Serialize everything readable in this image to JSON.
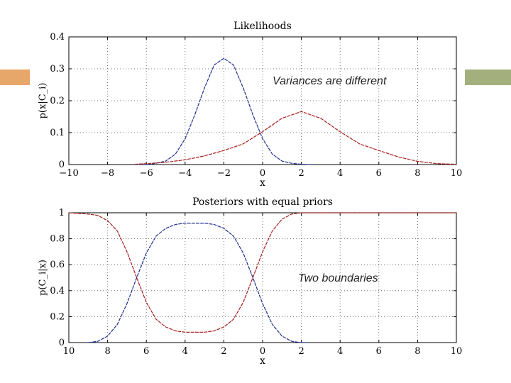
{
  "slide": {
    "accent_color": "#e7a66a",
    "accent_right_color": "#a3b07d"
  },
  "annotations": {
    "top": "Variances are different",
    "bottom": "Two boundaries"
  },
  "chart_data": [
    {
      "type": "line",
      "title": "Likelihoods",
      "xlabel": "x",
      "ylabel": "p(x|C_i)",
      "xlim": [
        -10,
        10
      ],
      "ylim": [
        0,
        0.4
      ],
      "x_ticks": [
        -10,
        -8,
        -6,
        -4,
        -2,
        0,
        2,
        4,
        6,
        8,
        10
      ],
      "y_ticks": [
        0,
        0.1,
        0.2,
        0.3,
        0.4
      ],
      "x_tick_labels": [
        "−10",
        "−8",
        "−6",
        "−4",
        "−2",
        "0",
        "2",
        "4",
        "6",
        "8",
        "10"
      ],
      "y_tick_labels": [
        "0",
        "0.1",
        "0.2",
        "0.3",
        "0.4"
      ],
      "grid": true,
      "series": [
        {
          "color": "#1f2f8f",
          "x": [
            -6.4,
            -6,
            -5.5,
            -5,
            -4.5,
            -4,
            -3.5,
            -3,
            -2.5,
            -2,
            -1.5,
            -1,
            -0.5,
            0,
            0.5,
            1,
            1.5,
            2,
            2.5
          ],
          "y": [
            0.0,
            0.0,
            0.004,
            0.011,
            0.033,
            0.081,
            0.156,
            0.24,
            0.312,
            0.333,
            0.312,
            0.24,
            0.156,
            0.081,
            0.033,
            0.011,
            0.004,
            0.001,
            0.0
          ]
        },
        {
          "color": "#a52020",
          "x": [
            -6.6,
            -6,
            -5,
            -4,
            -3,
            -2,
            -1,
            0,
            1,
            2,
            3,
            4,
            5,
            6,
            7,
            8,
            9,
            10
          ],
          "y": [
            0.001,
            0.003,
            0.007,
            0.015,
            0.027,
            0.044,
            0.065,
            0.103,
            0.145,
            0.166,
            0.145,
            0.103,
            0.065,
            0.044,
            0.024,
            0.01,
            0.003,
            0.001
          ]
        }
      ]
    },
    {
      "type": "line",
      "title": "Posteriors with equal priors",
      "xlabel": "x",
      "ylabel": "p(C_i|x)",
      "xlim": [
        -10,
        10
      ],
      "ylim": [
        0,
        1
      ],
      "x_ticks": [
        -10,
        -8,
        -6,
        -4,
        -2,
        0,
        2,
        4,
        6,
        8,
        10
      ],
      "y_ticks": [
        0,
        0.2,
        0.4,
        0.6,
        0.8,
        1
      ],
      "x_tick_labels": [
        "10",
        "8",
        "6",
        "4",
        "2",
        "0",
        "2",
        "4",
        "6",
        "8",
        "10"
      ],
      "y_tick_labels": [
        "0",
        "0.2",
        "0.4",
        "0.6",
        "0.8",
        "1"
      ],
      "grid": true,
      "series": [
        {
          "color": "#1f2f8f",
          "x": [
            -9,
            -8.5,
            -8,
            -7.5,
            -7,
            -6.5,
            -6,
            -5.5,
            -5,
            -4.5,
            -4,
            -3.5,
            -3,
            -2.5,
            -2,
            -1.5,
            -1,
            -0.5,
            0,
            0.5,
            1,
            1.5,
            2,
            2.3
          ],
          "y": [
            0.0,
            0.01,
            0.05,
            0.14,
            0.3,
            0.5,
            0.69,
            0.82,
            0.88,
            0.91,
            0.92,
            0.92,
            0.92,
            0.91,
            0.88,
            0.82,
            0.69,
            0.5,
            0.3,
            0.14,
            0.05,
            0.01,
            0.0,
            0.0
          ]
        },
        {
          "color": "#a52020",
          "x": [
            -10,
            -9,
            -8.5,
            -8,
            -7.5,
            -7,
            -6.5,
            -6,
            -5.5,
            -5,
            -4.5,
            -4,
            -3.5,
            -3,
            -2.5,
            -2,
            -1.5,
            -1,
            -0.5,
            0,
            0.5,
            1,
            1.5,
            2,
            2.5,
            3,
            4,
            6,
            8,
            10
          ],
          "y": [
            1.0,
            0.99,
            0.98,
            0.94,
            0.86,
            0.7,
            0.5,
            0.31,
            0.18,
            0.12,
            0.09,
            0.08,
            0.08,
            0.08,
            0.09,
            0.12,
            0.18,
            0.31,
            0.5,
            0.7,
            0.86,
            0.95,
            0.99,
            1.0,
            1.0,
            1.0,
            1.0,
            1.0,
            1.0,
            1.0
          ]
        }
      ]
    }
  ]
}
